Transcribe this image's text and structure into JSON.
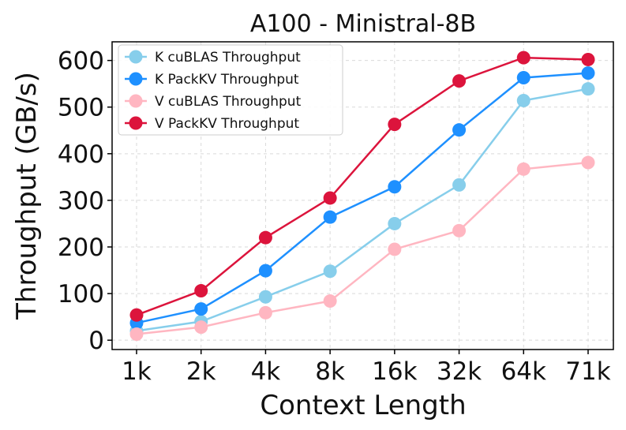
{
  "chart_data": {
    "type": "line",
    "title": "A100 - Ministral-8B",
    "xlabel": "Context Length",
    "ylabel": "Throughput (GB/s)",
    "categories": [
      "1k",
      "2k",
      "4k",
      "8k",
      "16k",
      "32k",
      "64k",
      "71k"
    ],
    "ylim": [
      -20,
      640
    ],
    "yticks": [
      0,
      100,
      200,
      300,
      400,
      500,
      600
    ],
    "grid": true,
    "legend_position": "top-left",
    "series": [
      {
        "name": "K cuBLAS Throughput",
        "color": "#87CEEB",
        "values": [
          20,
          40,
          93,
          148,
          250,
          333,
          514,
          539
        ]
      },
      {
        "name": "K PackKV Throughput",
        "color": "#1E90FF",
        "values": [
          37,
          67,
          149,
          264,
          329,
          451,
          563,
          573
        ]
      },
      {
        "name": "V cuBLAS Throughput",
        "color": "#FFB6C1",
        "values": [
          13,
          28,
          59,
          84,
          195,
          235,
          367,
          381
        ]
      },
      {
        "name": "V PackKV Throughput",
        "color": "#DC143C",
        "values": [
          54,
          106,
          220,
          305,
          463,
          556,
          606,
          602
        ]
      }
    ]
  }
}
